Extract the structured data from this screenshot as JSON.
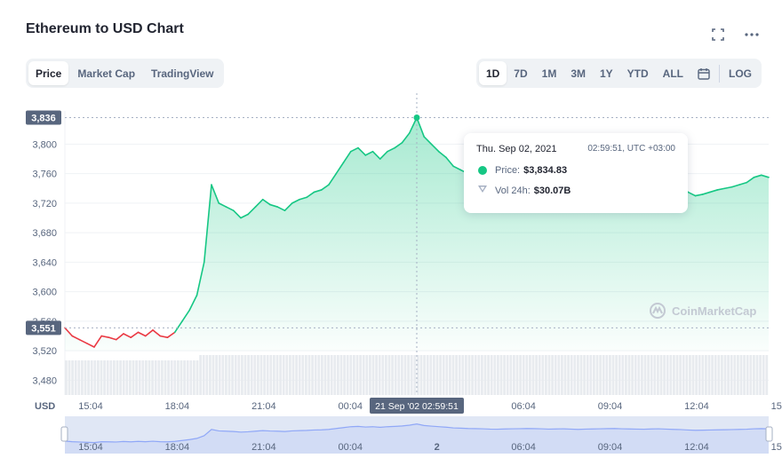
{
  "header": {
    "title": "Ethereum to USD Chart"
  },
  "tabs": [
    {
      "label": "Price",
      "active": true
    },
    {
      "label": "Market Cap",
      "active": false
    },
    {
      "label": "TradingView",
      "active": false
    }
  ],
  "ranges": [
    {
      "label": "1D",
      "active": true
    },
    {
      "label": "7D",
      "active": false
    },
    {
      "label": "1M",
      "active": false
    },
    {
      "label": "3M",
      "active": false
    },
    {
      "label": "1Y",
      "active": false
    },
    {
      "label": "YTD",
      "active": false
    },
    {
      "label": "ALL",
      "active": false
    }
  ],
  "calendar_icon": "calendar-icon",
  "log_label": "LOG",
  "tooltip": {
    "date": "Thu. Sep 02, 2021",
    "time": "02:59:51, UTC +03:00",
    "price_label": "Price:",
    "price_value": "$3,834.83",
    "vol_label": "Vol 24h:",
    "vol_value": "$30.07B"
  },
  "watermark": "CoinMarketCap",
  "colors": {
    "up": "#16c784",
    "down": "#ea3943",
    "axis_text": "#58667e",
    "accent": "#3861fb"
  },
  "chart_data": {
    "type": "area",
    "currency_label": "USD",
    "yticks": [
      3480,
      3520,
      3560,
      3600,
      3640,
      3680,
      3720,
      3760,
      3800
    ],
    "ylim": [
      3460,
      3845
    ],
    "xtick_labels": [
      "15:04",
      "18:04",
      "21:04",
      "00:04",
      "03:04",
      "06:04",
      "09:04",
      "12:04",
      "15:04"
    ],
    "hover_label": "21 Sep '02 02:59:51",
    "hover_price_label": "3,836",
    "open_price_label": "3,551",
    "open_price": 3551,
    "high_price": 3836,
    "navigator_labels": [
      "15:04",
      "18:04",
      "21:04",
      "00:04",
      "2",
      "06:04",
      "09:04",
      "12:04",
      "15:04"
    ],
    "x": [
      "15:04",
      "15:20",
      "15:35",
      "15:50",
      "16:05",
      "16:20",
      "16:35",
      "16:50",
      "17:05",
      "17:20",
      "17:35",
      "17:50",
      "18:05",
      "18:20",
      "18:35",
      "18:50",
      "19:05",
      "19:20",
      "19:35",
      "19:50",
      "20:05",
      "20:20",
      "20:35",
      "20:50",
      "21:05",
      "21:20",
      "21:35",
      "21:50",
      "22:05",
      "22:20",
      "22:35",
      "22:50",
      "23:05",
      "23:20",
      "23:35",
      "23:50",
      "00:05",
      "00:20",
      "00:35",
      "00:50",
      "01:05",
      "01:20",
      "01:35",
      "01:50",
      "02:05",
      "02:20",
      "02:35",
      "02:50",
      "02:59",
      "03:10",
      "03:25",
      "03:40",
      "03:55",
      "04:10",
      "04:25",
      "04:40",
      "04:55",
      "05:10",
      "05:25",
      "05:40",
      "05:55",
      "06:10",
      "06:25",
      "06:40",
      "06:55",
      "07:10",
      "07:25",
      "07:40",
      "07:55",
      "08:10",
      "08:25",
      "08:40",
      "08:55",
      "09:10",
      "09:25",
      "09:40",
      "09:55",
      "10:10",
      "10:25",
      "10:40",
      "10:55",
      "11:10",
      "11:25",
      "11:40",
      "11:55",
      "12:10",
      "12:25",
      "12:40",
      "12:55",
      "13:10",
      "13:25",
      "13:40",
      "13:55",
      "14:10",
      "14:25",
      "14:40",
      "14:55"
    ],
    "price": [
      3551,
      3540,
      3535,
      3530,
      3525,
      3540,
      3538,
      3535,
      3543,
      3538,
      3545,
      3540,
      3548,
      3540,
      3538,
      3545,
      3560,
      3575,
      3595,
      3640,
      3745,
      3720,
      3715,
      3710,
      3700,
      3705,
      3715,
      3725,
      3718,
      3715,
      3710,
      3720,
      3725,
      3728,
      3735,
      3738,
      3745,
      3760,
      3775,
      3790,
      3795,
      3785,
      3790,
      3780,
      3790,
      3795,
      3802,
      3815,
      3836,
      3810,
      3800,
      3790,
      3782,
      3770,
      3765,
      3760,
      3758,
      3755,
      3750,
      3748,
      3752,
      3755,
      3757,
      3760,
      3758,
      3755,
      3750,
      3752,
      3755,
      3750,
      3745,
      3750,
      3752,
      3755,
      3758,
      3760,
      3755,
      3752,
      3750,
      3748,
      3752,
      3755,
      3750,
      3745,
      3742,
      3735,
      3730,
      3732,
      3735,
      3738,
      3740,
      3742,
      3745,
      3748,
      3755,
      3758,
      3755
    ]
  }
}
